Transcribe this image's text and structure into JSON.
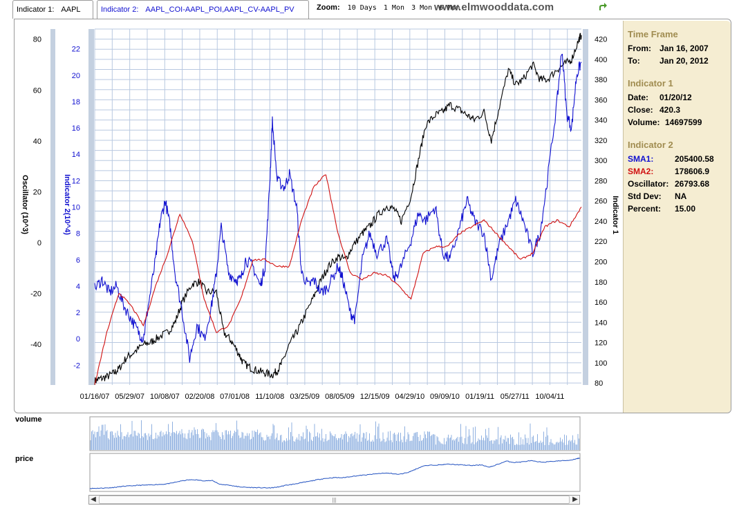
{
  "header": {
    "tab1": {
      "label": "Indicator 1:",
      "value": "AAPL"
    },
    "tab2": {
      "label": "Indicator 2:",
      "value": "AAPL_COI-AAPL_POI,AAPL_CV-AAPL_PV"
    },
    "zoom": {
      "label": "Zoom:",
      "options": [
        "10 Days",
        "1 Mon",
        "3 Mon",
        "6 Mon"
      ]
    },
    "site": "www.elmwooddata.com"
  },
  "info": {
    "timeframe": {
      "title": "Time Frame",
      "from_label": "From:",
      "from": "Jan 16, 2007",
      "to_label": "To:",
      "to": "Jan 20, 2012"
    },
    "ind1": {
      "title": "Indicator 1",
      "date_label": "Date:",
      "date": "01/20/12",
      "close_label": "Close:",
      "close": "420.3",
      "volume_label": "Volume:",
      "volume": "14697599"
    },
    "ind2": {
      "title": "Indicator 2",
      "sma1_label": "SMA1:",
      "sma1": "205400.58",
      "sma2_label": "SMA2:",
      "sma2": "178606.9",
      "osc_label": "Oscillator:",
      "osc": "26793.68",
      "std_label": "Std Dev:",
      "std": "NA",
      "pct_label": "Percent:",
      "pct": "15.00"
    }
  },
  "panels": {
    "volume": "volume",
    "price": "price"
  },
  "colors": {
    "price": "#000000",
    "sma1": "#1010d0",
    "sma2": "#d01010",
    "grid": "#b8c8e0",
    "axis_bar": "#c4d0e0",
    "mini": "#8fb0e0"
  },
  "chart_data": {
    "type": "line",
    "x_tick_labels": [
      "01/16/07",
      "05/29/07",
      "10/08/07",
      "02/20/08",
      "07/01/08",
      "11/10/08",
      "03/25/09",
      "08/05/09",
      "12/15/09",
      "04/29/10",
      "09/09/10",
      "01/19/11",
      "05/27/11",
      "10/04/11"
    ],
    "x_range": [
      "01/16/07",
      "01/20/12"
    ],
    "axes": {
      "oscillator": {
        "label": "Oscillator (10^3)",
        "range": [
          -56,
          84
        ],
        "ticks": [
          -40,
          -20,
          0,
          20,
          40,
          60,
          80
        ]
      },
      "indicator2": {
        "label": "Indicator 2(10^4)",
        "range": [
          -3.5,
          23.5
        ],
        "ticks": [
          -2,
          0,
          2,
          4,
          6,
          8,
          10,
          12,
          14,
          16,
          18,
          20,
          22
        ]
      },
      "indicator1": {
        "label": "Indicator 1",
        "range": [
          78,
          430
        ],
        "ticks": [
          80,
          100,
          120,
          140,
          160,
          180,
          200,
          220,
          240,
          260,
          280,
          300,
          320,
          340,
          360,
          380,
          400,
          420
        ]
      }
    },
    "series": [
      {
        "axis": "indicator1",
        "points": [
          [
            0,
            82
          ],
          [
            0.2,
            84
          ],
          [
            0.5,
            86
          ],
          [
            0.8,
            90
          ],
          [
            1.0,
            94
          ],
          [
            1.3,
            105
          ],
          [
            1.6,
            110
          ],
          [
            2.0,
            118
          ],
          [
            2.3,
            120
          ],
          [
            2.6,
            125
          ],
          [
            3.0,
            130
          ],
          [
            3.3,
            140
          ],
          [
            3.6,
            160
          ],
          [
            4.0,
            178
          ],
          [
            4.3,
            180
          ],
          [
            4.6,
            170
          ],
          [
            5.0,
            170
          ],
          [
            5.3,
            130
          ],
          [
            5.6,
            122
          ],
          [
            5.9,
            110
          ],
          [
            6.1,
            100
          ],
          [
            6.4,
            95
          ],
          [
            6.7,
            92
          ],
          [
            7.0,
            90
          ],
          [
            7.3,
            88
          ],
          [
            7.5,
            92
          ],
          [
            7.7,
            100
          ],
          [
            8.0,
            118
          ],
          [
            8.3,
            130
          ],
          [
            8.6,
            145
          ],
          [
            9.0,
            165
          ],
          [
            9.3,
            182
          ],
          [
            9.6,
            195
          ],
          [
            10.0,
            205
          ],
          [
            10.3,
            202
          ],
          [
            10.6,
            215
          ],
          [
            11.0,
            228
          ],
          [
            11.3,
            235
          ],
          [
            11.6,
            245
          ],
          [
            12.0,
            255
          ],
          [
            12.3,
            252
          ],
          [
            12.6,
            240
          ],
          [
            13.0,
            265
          ],
          [
            13.3,
            300
          ],
          [
            13.6,
            335
          ],
          [
            14.0,
            345
          ],
          [
            14.3,
            348
          ],
          [
            14.6,
            355
          ],
          [
            15.0,
            350
          ],
          [
            15.3,
            345
          ],
          [
            15.6,
            340
          ],
          [
            16.0,
            348
          ],
          [
            16.3,
            320
          ],
          [
            16.6,
            350
          ],
          [
            17.0,
            390
          ],
          [
            17.3,
            375
          ],
          [
            17.6,
            380
          ],
          [
            18.0,
            395
          ],
          [
            18.3,
            380
          ],
          [
            18.6,
            380
          ],
          [
            19.0,
            390
          ],
          [
            19.3,
            395
          ],
          [
            19.6,
            400
          ],
          [
            19.9,
            420
          ],
          [
            20.0,
            424
          ]
        ]
      },
      {
        "axis": "indicator2",
        "points": [
          [
            0,
            3.8
          ],
          [
            0.3,
            4.5
          ],
          [
            0.6,
            3.5
          ],
          [
            0.9,
            4.0
          ],
          [
            1.2,
            2.5
          ],
          [
            1.5,
            1.5
          ],
          [
            1.8,
            0.5
          ],
          [
            2.0,
            0
          ],
          [
            2.2,
            2.5
          ],
          [
            2.5,
            6.0
          ],
          [
            2.7,
            9.0
          ],
          [
            2.9,
            10.5
          ],
          [
            3.1,
            8.5
          ],
          [
            3.3,
            5.0
          ],
          [
            3.6,
            2.0
          ],
          [
            3.9,
            -1.5
          ],
          [
            4.2,
            1.0
          ],
          [
            4.5,
            0.0
          ],
          [
            4.8,
            2.5
          ],
          [
            5.0,
            5.0
          ],
          [
            5.2,
            8.5
          ],
          [
            5.5,
            5.0
          ],
          [
            5.8,
            4.5
          ],
          [
            6.0,
            4.5
          ],
          [
            6.2,
            6.0
          ],
          [
            6.5,
            5.5
          ],
          [
            6.8,
            4.0
          ],
          [
            7.0,
            5.5
          ],
          [
            7.2,
            12.0
          ],
          [
            7.3,
            16.5
          ],
          [
            7.5,
            12.0
          ],
          [
            7.8,
            11.5
          ],
          [
            8.0,
            12.5
          ],
          [
            8.3,
            10.0
          ],
          [
            8.5,
            5.0
          ],
          [
            8.8,
            4.0
          ],
          [
            9.0,
            4.5
          ],
          [
            9.3,
            3.5
          ],
          [
            9.6,
            4.0
          ],
          [
            10.0,
            5.5
          ],
          [
            10.2,
            4.5
          ],
          [
            10.5,
            2.0
          ],
          [
            10.7,
            1.5
          ],
          [
            11.0,
            6.0
          ],
          [
            11.3,
            8.0
          ],
          [
            11.6,
            6.5
          ],
          [
            12.0,
            7.5
          ],
          [
            12.3,
            4.5
          ],
          [
            12.6,
            5.5
          ],
          [
            13.0,
            7.5
          ],
          [
            13.3,
            9.5
          ],
          [
            13.6,
            9.0
          ],
          [
            14.0,
            10.0
          ],
          [
            14.3,
            6.5
          ],
          [
            14.6,
            6.0
          ],
          [
            15.0,
            8.5
          ],
          [
            15.3,
            10.5
          ],
          [
            15.6,
            9.0
          ],
          [
            16.0,
            8.0
          ],
          [
            16.3,
            4.5
          ],
          [
            16.6,
            7.0
          ],
          [
            17.0,
            9.0
          ],
          [
            17.3,
            10.5
          ],
          [
            17.6,
            9.0
          ],
          [
            18.0,
            6.5
          ],
          [
            18.3,
            8.0
          ],
          [
            18.6,
            12.0
          ],
          [
            19.0,
            18.0
          ],
          [
            19.2,
            22.0
          ],
          [
            19.4,
            17.0
          ],
          [
            19.6,
            16.0
          ],
          [
            19.8,
            20.0
          ],
          [
            20.0,
            21.0
          ]
        ]
      },
      {
        "axis": "indicator2",
        "points": [
          [
            0,
            -3.5
          ],
          [
            0.5,
            0.5
          ],
          [
            1.0,
            3.5
          ],
          [
            1.5,
            2.5
          ],
          [
            2.0,
            1.0
          ],
          [
            2.5,
            4.0
          ],
          [
            3.0,
            6.5
          ],
          [
            3.5,
            9.5
          ],
          [
            4.0,
            7.5
          ],
          [
            4.5,
            3.0
          ],
          [
            5.0,
            0.5
          ],
          [
            5.5,
            1.0
          ],
          [
            6.0,
            3.0
          ],
          [
            6.5,
            6.0
          ],
          [
            7.0,
            6.0
          ],
          [
            7.5,
            5.5
          ],
          [
            8.0,
            5.5
          ],
          [
            8.5,
            9.0
          ],
          [
            9.0,
            11.5
          ],
          [
            9.5,
            12.5
          ],
          [
            10.0,
            8.0
          ],
          [
            10.5,
            5.0
          ],
          [
            11.0,
            4.5
          ],
          [
            11.5,
            5.0
          ],
          [
            12.0,
            4.8
          ],
          [
            12.5,
            4.0
          ],
          [
            13.0,
            3.0
          ],
          [
            13.5,
            6.5
          ],
          [
            14.0,
            7.0
          ],
          [
            14.5,
            7.0
          ],
          [
            15.0,
            8.0
          ],
          [
            15.5,
            8.5
          ],
          [
            16.0,
            9.0
          ],
          [
            16.5,
            8.0
          ],
          [
            17.0,
            7.0
          ],
          [
            17.5,
            6.0
          ],
          [
            18.0,
            6.5
          ],
          [
            18.5,
            8.5
          ],
          [
            19.0,
            9.0
          ],
          [
            19.5,
            8.5
          ],
          [
            20.0,
            10.0
          ]
        ]
      }
    ]
  }
}
